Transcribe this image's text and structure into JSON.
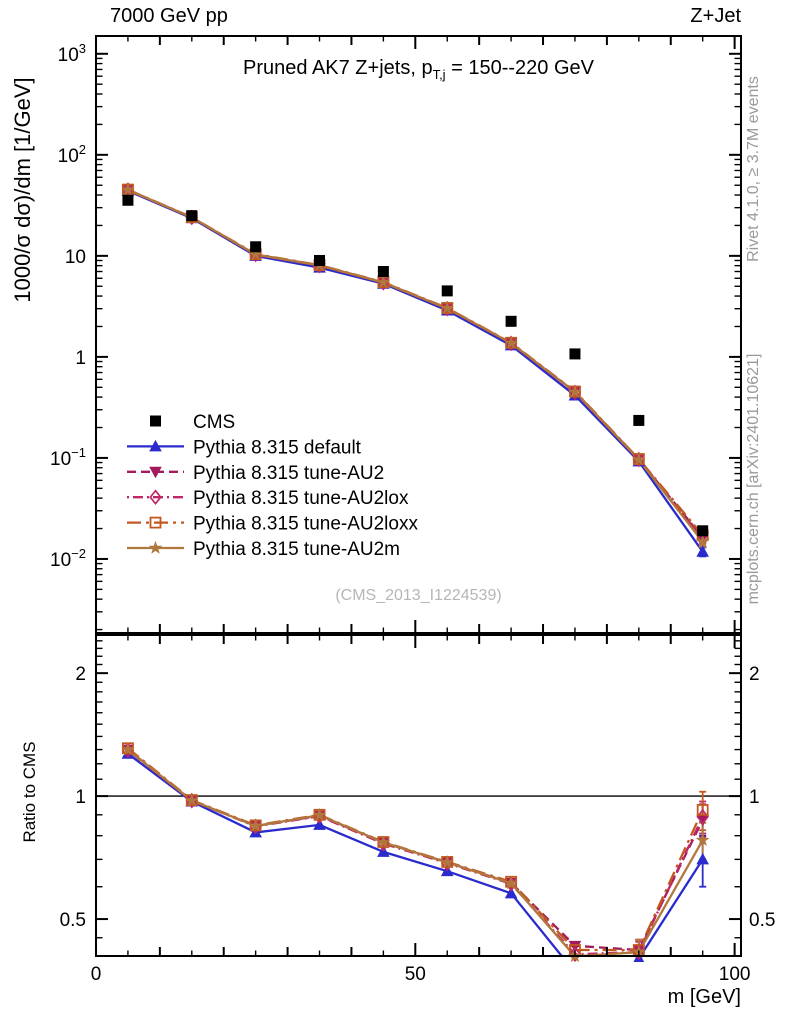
{
  "header": {
    "left": "7000 GeV pp",
    "right": "Z+Jet"
  },
  "titles": {
    "plot_title_pre": "Pruned AK7 Z+jets, p",
    "plot_title_sub": "T,j",
    "plot_title_post": " = 150--220 GeV"
  },
  "axes": {
    "main_ylabel": "1000/σ  dσ)/dm [1/GeV]",
    "ratio_ylabel": "Ratio to CMS",
    "xlabel": "m [GeV]"
  },
  "side_notes": {
    "top_rotated": "Rivet 4.1.0, ≥ 3.7M events",
    "bottom_rotated": "mcplots.cern.ch [arXiv:2401.10621]"
  },
  "watermark": "(CMS_2013_I1224539)",
  "colors": {
    "frame": "#000000",
    "reference_line": "#000000",
    "note_gray": "#9a9a9a",
    "watermark_gray": "#b6b6b6"
  },
  "chart_data": {
    "type": "line",
    "x_bin_centers": [
      5,
      15,
      25,
      35,
      45,
      55,
      65,
      75,
      85,
      95
    ],
    "x_axis": {
      "lim": [
        0,
        101
      ],
      "major_ticks": [
        0,
        50,
        100
      ],
      "label": "m [GeV]"
    },
    "main_axis": {
      "scale": "log",
      "lim": [
        0.00185,
        1500
      ],
      "ticks": [
        {
          "v": 1000,
          "base": "10",
          "exp": "3"
        },
        {
          "v": 100,
          "base": "10",
          "exp": "2"
        },
        {
          "v": 10,
          "base": "10",
          "exp": ""
        },
        {
          "v": 1,
          "base": "1",
          "exp": ""
        },
        {
          "v": 0.1,
          "base": "10",
          "exp": "−1"
        },
        {
          "v": 0.01,
          "base": "10",
          "exp": "−2"
        }
      ]
    },
    "ratio_axis": {
      "scale": "log",
      "lim": [
        0.406,
        2.48
      ],
      "reference_line": 1,
      "ticks": [
        {
          "v": 2,
          "label": "2"
        },
        {
          "v": 1,
          "label": "1"
        },
        {
          "v": 0.5,
          "label": "0.5"
        }
      ]
    },
    "series": [
      {
        "name": "CMS",
        "color": "#000000",
        "line_style": "none",
        "marker": "square",
        "values": [
          35.5,
          25.0,
          12.3,
          9.0,
          7.0,
          4.5,
          2.25,
          1.07,
          0.235,
          0.019
        ],
        "value_err": [
          0,
          0,
          0,
          0,
          0,
          0,
          0,
          0,
          0,
          0.002
        ],
        "ratio": null,
        "ratio_err": null
      },
      {
        "name": "Pythia 8.315 default",
        "color": "#2a2acd",
        "line_style": "solid",
        "marker": "triangle-up",
        "values": [
          44.0,
          23.6,
          10.0,
          7.65,
          5.3,
          2.88,
          1.3,
          0.415,
          0.0925,
          0.0118
        ],
        "value_err": [
          0,
          0,
          0,
          0,
          0,
          0,
          0,
          0,
          0,
          0.0012
        ],
        "ratio": [
          1.27,
          0.97,
          0.815,
          0.85,
          0.73,
          0.655,
          0.578,
          0.37,
          0.4,
          0.7
        ],
        "ratio_err": [
          0,
          0,
          0,
          0,
          0,
          0,
          0,
          0,
          0.02,
          0.1
        ]
      },
      {
        "name": "Pythia 8.315 tune-AU2",
        "color": "#a21a5c",
        "line_style": "dashed",
        "marker": "triangle-down",
        "values": [
          45.0,
          24.0,
          10.3,
          8.05,
          5.45,
          3.02,
          1.37,
          0.45,
          0.097,
          0.0163
        ],
        "value_err": [
          0,
          0,
          0,
          0,
          0,
          0,
          0,
          0,
          0,
          0.0018
        ],
        "ratio": [
          1.3,
          0.975,
          0.845,
          0.895,
          0.77,
          0.688,
          0.613,
          0.43,
          0.42,
          0.875
        ],
        "ratio_err": [
          0,
          0,
          0,
          0,
          0,
          0,
          0,
          0,
          0.025,
          0.08
        ]
      },
      {
        "name": "Pythia 8.315 tune-AU2lox",
        "color": "#c02768",
        "line_style": "dashdot",
        "marker": "diamond-open",
        "values": [
          44.8,
          24.0,
          10.3,
          8.0,
          5.42,
          3.0,
          1.36,
          0.445,
          0.0965,
          0.016
        ],
        "value_err": [
          0,
          0,
          0,
          0,
          0,
          0,
          0,
          0,
          0,
          0.0017
        ],
        "ratio": [
          1.295,
          0.975,
          0.843,
          0.893,
          0.765,
          0.685,
          0.61,
          0.41,
          0.415,
          0.89
        ],
        "ratio_err": [
          0,
          0,
          0,
          0,
          0,
          0,
          0,
          0,
          0.025,
          0.08
        ]
      },
      {
        "name": "Pythia 8.315 tune-AU2loxx",
        "color": "#c2581f",
        "line_style": "dashdot-long",
        "marker": "square-open",
        "values": [
          45.3,
          24.1,
          10.4,
          8.1,
          5.5,
          3.05,
          1.38,
          0.455,
          0.0975,
          0.0172
        ],
        "value_err": [
          0,
          0,
          0,
          0,
          0,
          0,
          0,
          0,
          0,
          0.0019
        ],
        "ratio": [
          1.31,
          0.978,
          0.848,
          0.9,
          0.772,
          0.69,
          0.617,
          0.42,
          0.42,
          0.925
        ],
        "ratio_err": [
          0,
          0,
          0,
          0,
          0,
          0,
          0,
          0,
          0.025,
          0.1
        ]
      },
      {
        "name": "Pythia 8.315 tune-AU2m",
        "color": "#b0783d",
        "line_style": "solid",
        "marker": "star",
        "values": [
          45.0,
          24.0,
          10.3,
          8.05,
          5.45,
          3.02,
          1.37,
          0.448,
          0.096,
          0.0148
        ],
        "value_err": [
          0,
          0,
          0,
          0,
          0,
          0,
          0,
          0,
          0,
          0.0016
        ],
        "ratio": [
          1.3,
          0.975,
          0.845,
          0.898,
          0.77,
          0.688,
          0.612,
          0.405,
          0.415,
          0.78
        ],
        "ratio_err": [
          0,
          0,
          0,
          0,
          0,
          0,
          0,
          0,
          0.03,
          0.08
        ]
      }
    ],
    "legend_position": "left-middle",
    "grid": false
  }
}
